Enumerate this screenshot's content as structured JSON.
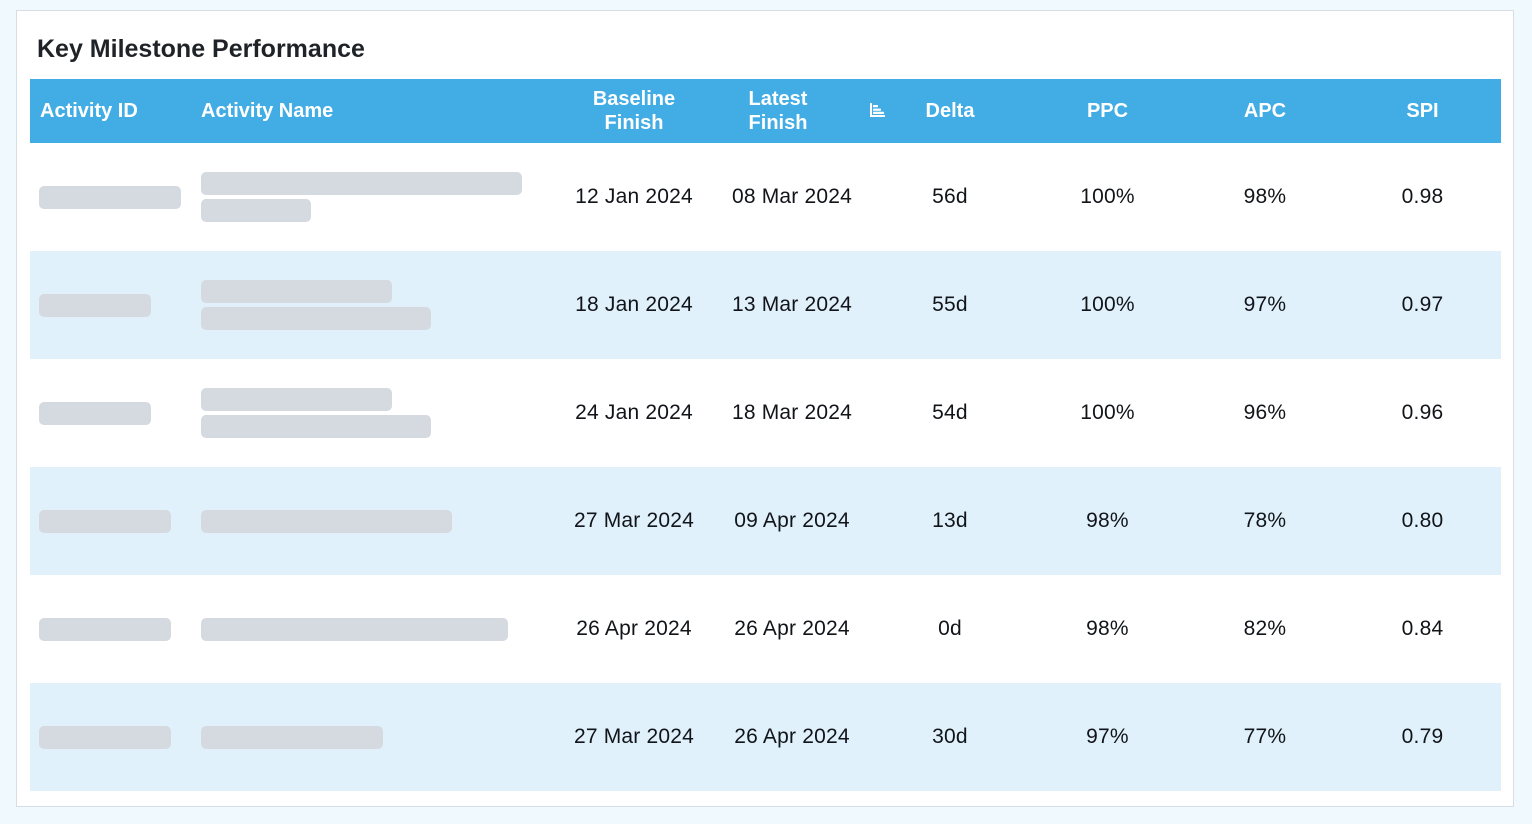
{
  "title": "Key Milestone Performance",
  "columns": {
    "activity_id": "Activity ID",
    "activity_name": "Activity Name",
    "baseline_finish": [
      "Baseline",
      "Finish"
    ],
    "latest_finish": [
      "Latest",
      "Finish"
    ],
    "delta": "Delta",
    "ppc": "PPC",
    "apc": "APC",
    "spi": "SPI"
  },
  "sort_indicator": "sort-icon",
  "rows": [
    {
      "baseline_finish": "12 Jan 2024",
      "latest_finish": "08 Mar 2024",
      "delta": "56d",
      "ppc": "100%",
      "apc": "98%",
      "spi": "0.98"
    },
    {
      "baseline_finish": "18 Jan 2024",
      "latest_finish": "13 Mar 2024",
      "delta": "55d",
      "ppc": "100%",
      "apc": "97%",
      "spi": "0.97"
    },
    {
      "baseline_finish": "24 Jan 2024",
      "latest_finish": "18 Mar 2024",
      "delta": "54d",
      "ppc": "100%",
      "apc": "96%",
      "spi": "0.96"
    },
    {
      "baseline_finish": "27 Mar 2024",
      "latest_finish": "09 Apr 2024",
      "delta": "13d",
      "ppc": "98%",
      "apc": "78%",
      "spi": "0.80"
    },
    {
      "baseline_finish": "26 Apr 2024",
      "latest_finish": "26 Apr 2024",
      "delta": "0d",
      "ppc": "98%",
      "apc": "82%",
      "spi": "0.84"
    },
    {
      "baseline_finish": "27 Mar 2024",
      "latest_finish": "26 Apr 2024",
      "delta": "30d",
      "ppc": "97%",
      "apc": "77%",
      "spi": "0.79"
    }
  ],
  "colors": {
    "header_bg": "#42ace5",
    "alt_row_bg": "#e0f1fc",
    "placeholder": "#d5d9e0"
  }
}
